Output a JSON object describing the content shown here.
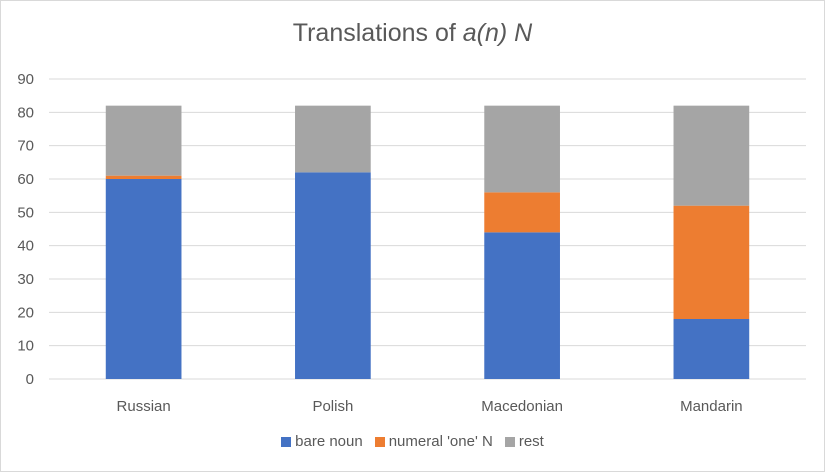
{
  "chart_data": {
    "type": "bar",
    "stacked": true,
    "title": "Translations of ",
    "title_emphasis": "a(n) N",
    "categories": [
      "Russian",
      "Polish",
      "Macedonian",
      "Mandarin"
    ],
    "series": [
      {
        "name": "bare noun",
        "color": "#4472C4",
        "values": [
          60,
          62,
          44,
          18
        ]
      },
      {
        "name": "numeral 'one' N",
        "color": "#ED7D31",
        "values": [
          1,
          0,
          12,
          34
        ]
      },
      {
        "name": "rest",
        "color": "#A5A5A5",
        "values": [
          21,
          20,
          26,
          30
        ]
      }
    ],
    "ylim": [
      0,
      90
    ],
    "yticks": [
      "0",
      "10",
      "20",
      "30",
      "40",
      "50",
      "60",
      "70",
      "80",
      "90"
    ],
    "grid": true,
    "legend_position": "bottom"
  }
}
